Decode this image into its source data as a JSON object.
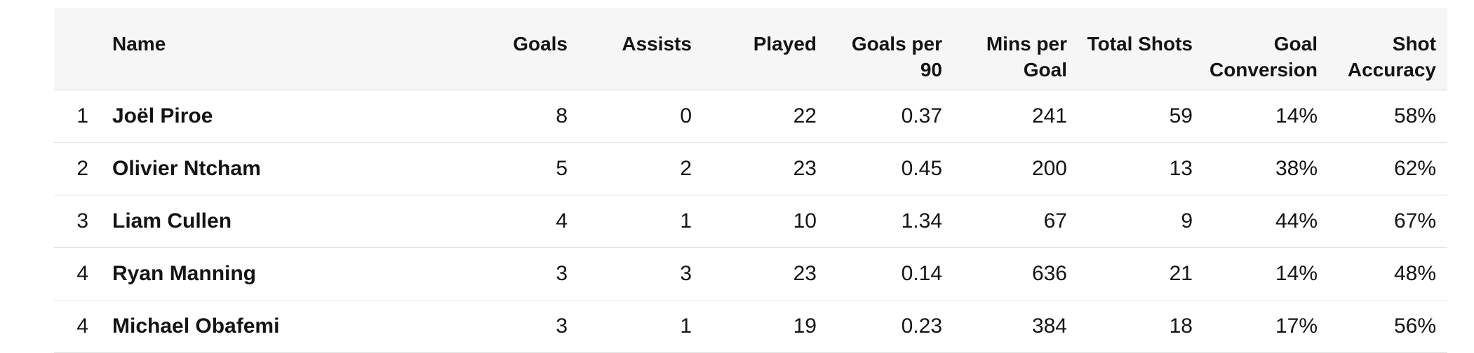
{
  "table": {
    "columns": {
      "rank": "",
      "name": "Name",
      "goals": "Goals",
      "assists": "Assists",
      "played": "Played",
      "goals_per_90_line1": "Goals per",
      "goals_per_90_line2": "90",
      "mins_per_goal_line1": "Mins per",
      "mins_per_goal_line2": "Goal",
      "total_shots": "Total Shots",
      "goal_conversion_line1": "Goal",
      "goal_conversion_line2": "Conversion",
      "shot_accuracy_line1": "Shot",
      "shot_accuracy_line2": "Accuracy"
    },
    "rows": [
      {
        "rank": "1",
        "name": "Joël Piroe",
        "goals": "8",
        "assists": "0",
        "played": "22",
        "goals_per_90": "0.37",
        "mins_per_goal": "241",
        "total_shots": "59",
        "goal_conversion": "14%",
        "shot_accuracy": "58%"
      },
      {
        "rank": "2",
        "name": "Olivier Ntcham",
        "goals": "5",
        "assists": "2",
        "played": "23",
        "goals_per_90": "0.45",
        "mins_per_goal": "200",
        "total_shots": "13",
        "goal_conversion": "38%",
        "shot_accuracy": "62%"
      },
      {
        "rank": "3",
        "name": "Liam Cullen",
        "goals": "4",
        "assists": "1",
        "played": "10",
        "goals_per_90": "1.34",
        "mins_per_goal": "67",
        "total_shots": "9",
        "goal_conversion": "44%",
        "shot_accuracy": "67%"
      },
      {
        "rank": "4",
        "name": "Ryan Manning",
        "goals": "3",
        "assists": "3",
        "played": "23",
        "goals_per_90": "0.14",
        "mins_per_goal": "636",
        "total_shots": "21",
        "goal_conversion": "14%",
        "shot_accuracy": "48%"
      },
      {
        "rank": "4",
        "name": "Michael Obafemi",
        "goals": "3",
        "assists": "1",
        "played": "19",
        "goals_per_90": "0.23",
        "mins_per_goal": "384",
        "total_shots": "18",
        "goal_conversion": "17%",
        "shot_accuracy": "56%"
      }
    ]
  },
  "colors": {
    "header_bg": "#f6f6f6",
    "text": "#141414",
    "row_divider": "#e3e3e3"
  }
}
